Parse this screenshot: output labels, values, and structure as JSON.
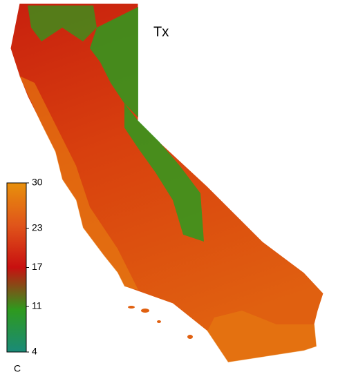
{
  "title": "Tx",
  "legend": {
    "unit": "C",
    "range": [
      4,
      30
    ],
    "ticks": [
      4,
      11,
      17,
      23,
      30
    ],
    "colors": [
      "#1a8a78",
      "#2e9a1e",
      "#c81010",
      "#e0551a",
      "#e8900c"
    ]
  }
}
